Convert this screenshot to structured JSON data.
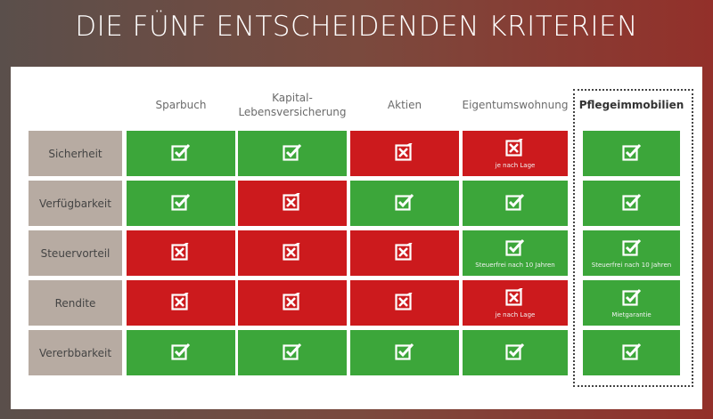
{
  "title": "DIE FÜNF ENTSCHEIDENDEN KRITERIEN",
  "colors": {
    "yes": "#3ca63a",
    "no": "#cc1a1d",
    "label": "#b7aba2"
  },
  "columns": [
    "Sparbuch",
    "Kapital-\nLebensversicherung",
    "Aktien",
    "Eigentumswohnung",
    "Pflegeimmobilien"
  ],
  "rows": [
    {
      "label": "Sicherheit",
      "cells": [
        {
          "v": "yes"
        },
        {
          "v": "yes"
        },
        {
          "v": "no"
        },
        {
          "v": "no",
          "note": "je nach Lage"
        },
        {
          "v": "yes"
        }
      ]
    },
    {
      "label": "Verfügbarkeit",
      "cells": [
        {
          "v": "yes"
        },
        {
          "v": "no"
        },
        {
          "v": "yes"
        },
        {
          "v": "yes"
        },
        {
          "v": "yes"
        }
      ]
    },
    {
      "label": "Steuervorteil",
      "cells": [
        {
          "v": "no"
        },
        {
          "v": "no"
        },
        {
          "v": "no"
        },
        {
          "v": "yes",
          "note": "Steuerfrei nach 10 Jahren"
        },
        {
          "v": "yes",
          "note": "Steuerfrei nach 10 Jahren"
        }
      ]
    },
    {
      "label": "Rendite",
      "cells": [
        {
          "v": "no"
        },
        {
          "v": "no"
        },
        {
          "v": "no"
        },
        {
          "v": "no",
          "note": "je nach Lage"
        },
        {
          "v": "yes",
          "note": "Mietgarantie"
        }
      ]
    },
    {
      "label": "Vererbbarkeit",
      "cells": [
        {
          "v": "yes"
        },
        {
          "v": "yes"
        },
        {
          "v": "yes"
        },
        {
          "v": "yes"
        },
        {
          "v": "yes"
        }
      ]
    }
  ]
}
